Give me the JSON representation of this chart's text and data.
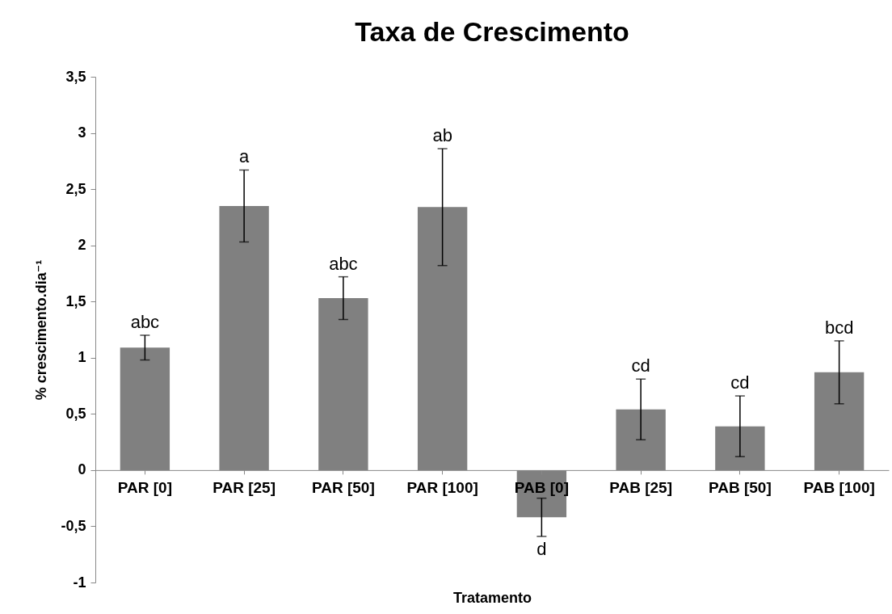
{
  "chart_data": {
    "type": "bar",
    "title": "Taxa de Crescimento",
    "xlabel": "Tratamento",
    "ylabel": "% crescimento.dia⁻¹",
    "categories": [
      "PAR [0]",
      "PAR [25]",
      "PAR [50]",
      "PAR [100]",
      "PAB [0]",
      "PAB [25]",
      "PAB [50]",
      "PAB [100]"
    ],
    "values": [
      1.09,
      2.35,
      1.53,
      2.34,
      -0.42,
      0.54,
      0.39,
      0.87
    ],
    "errors": [
      0.11,
      0.32,
      0.19,
      0.52,
      0.17,
      0.27,
      0.27,
      0.28
    ],
    "color": "#808080",
    "ylim": [
      -1,
      3.5
    ],
    "yticks": [
      {
        "value": -1,
        "label": "-1"
      },
      {
        "value": -0.5,
        "label": "-0,5"
      },
      0,
      {
        "value": 0.5,
        "label": "0,5"
      },
      1,
      {
        "value": 1.5,
        "label": "1,5"
      },
      2,
      {
        "value": 2.5,
        "label": "2,5"
      },
      3,
      {
        "value": 3.5,
        "label": "3,5"
      }
    ],
    "grid": false,
    "annotations": [
      "abc",
      "a",
      "abc",
      "ab",
      "d",
      "cd",
      "cd",
      "bcd"
    ]
  }
}
